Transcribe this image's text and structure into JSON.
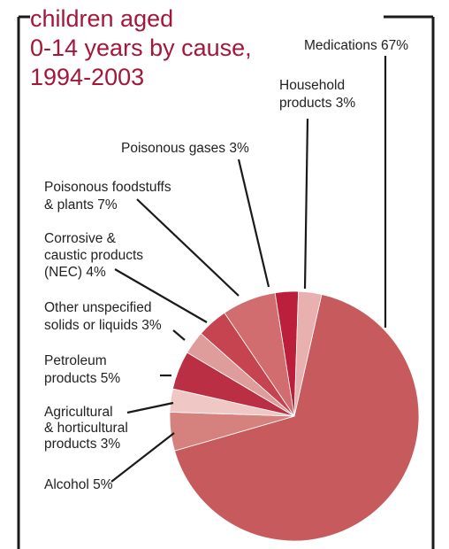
{
  "chart_data": {
    "type": "pie",
    "title_lines": [
      "children aged",
      "0-14 years by cause,",
      "1994-2003"
    ],
    "slices": [
      {
        "name": "Medications",
        "value": 67,
        "label": [
          "Medications 67%"
        ],
        "color": "#c65a5d"
      },
      {
        "name": "Alcohol",
        "value": 5,
        "label": [
          "Alcohol 5%"
        ],
        "color": "#d5817e"
      },
      {
        "name": "Agricultural & horticultural products",
        "value": 3,
        "label": [
          "Agricultural",
          "& horticultural",
          "products 3%"
        ],
        "color": "#efc8c6"
      },
      {
        "name": "Petroleum products",
        "value": 5,
        "label": [
          "Petroleum",
          "products 5%"
        ],
        "color": "#bb2f45"
      },
      {
        "name": "Other unspecified solids or liquids",
        "value": 3,
        "label": [
          "Other unspecified",
          "solids or liquids 3%"
        ],
        "color": "#de9c9b"
      },
      {
        "name": "Corrosive & caustic products (NEC)",
        "value": 4,
        "label": [
          "Corrosive &",
          "caustic products",
          "(NEC) 4%"
        ],
        "color": "#c64450"
      },
      {
        "name": "Poisonous foodstuffs & plants",
        "value": 7,
        "label": [
          "Poisonous foodstuffs",
          "& plants 7%"
        ],
        "color": "#d16d6e"
      },
      {
        "name": "Poisonous gases",
        "value": 3,
        "label": [
          "Poisonous gases 3%"
        ],
        "color": "#bb1f3b"
      },
      {
        "name": "Household products",
        "value": 3,
        "label": [
          "Household",
          "products 3%"
        ],
        "color": "#e8b1b0"
      }
    ],
    "title_color": "#a4173a",
    "frame_color": "#1a1a1a"
  }
}
